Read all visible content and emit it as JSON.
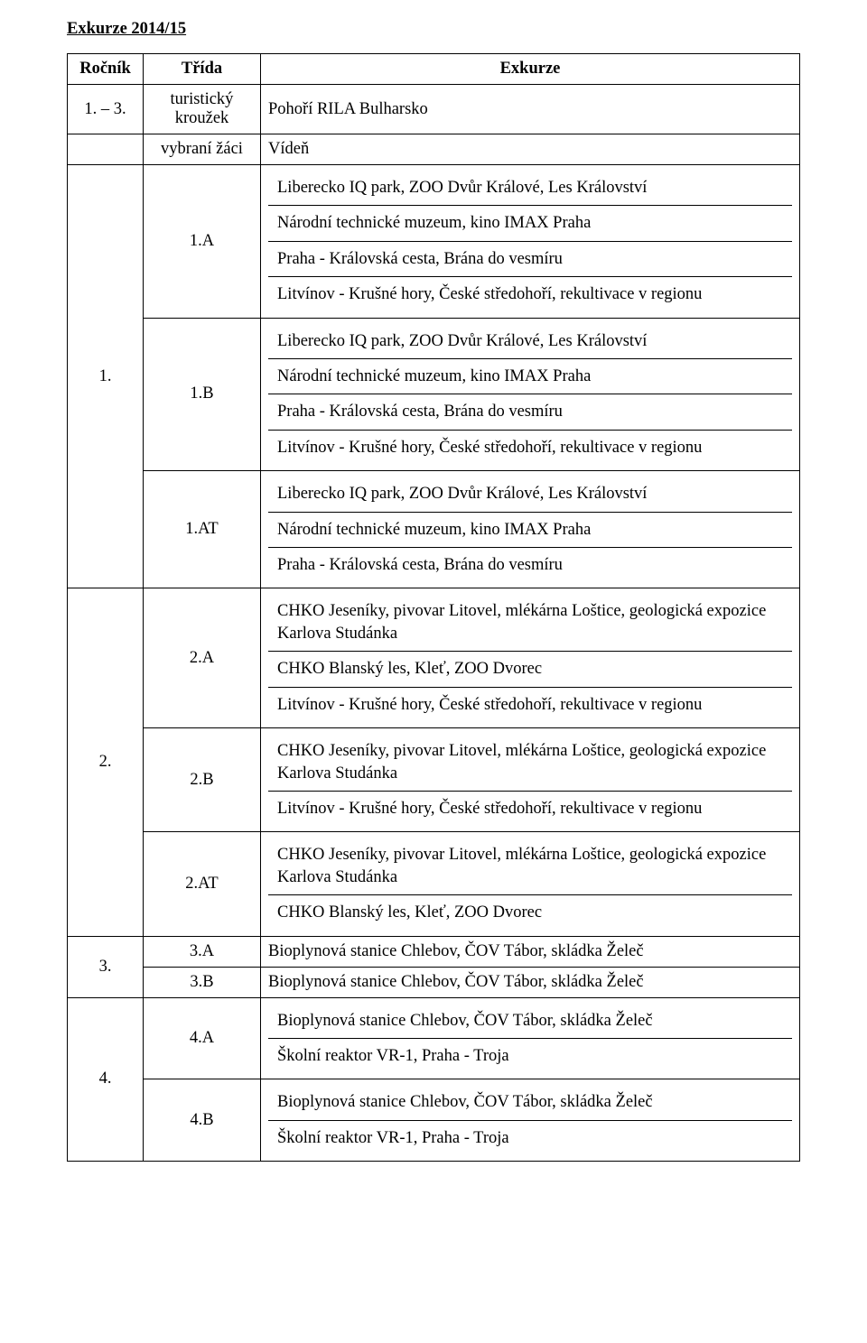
{
  "title": "Exkurze 2014/15",
  "headers": {
    "rocnik": "Ročník",
    "trida": "Třída",
    "exkurze": "Exkurze"
  },
  "r0": {
    "rocnik": "1. – 3.",
    "trida": "turistický kroužek",
    "ex": "Pohoří RILA Bulharsko"
  },
  "r1": {
    "trida": "vybraní žáci",
    "ex": "Vídeň"
  },
  "g1": {
    "rocnik": "1.",
    "a": {
      "trida": "1.A",
      "l1": "Liberecko IQ park, ZOO Dvůr Králové, Les Království",
      "l2": "Národní technické muzeum, kino IMAX Praha",
      "l3": "Praha - Královská cesta, Brána do vesmíru",
      "l4": "Litvínov - Krušné hory, České středohoří, rekultivace v regionu"
    },
    "b": {
      "trida": "1.B",
      "l1": "Liberecko IQ park, ZOO Dvůr Králové, Les Království",
      "l2": "Národní technické muzeum, kino IMAX Praha",
      "l3": "Praha - Královská cesta, Brána do vesmíru",
      "l4": "Litvínov - Krušné hory, České středohoří, rekultivace v regionu"
    },
    "at": {
      "trida": "1.AT",
      "l1": "Liberecko IQ park, ZOO Dvůr Králové, Les Království",
      "l2": "Národní technické muzeum, kino IMAX Praha",
      "l3": "Praha - Královská cesta, Brána do vesmíru"
    }
  },
  "g2": {
    "rocnik": "2.",
    "a": {
      "trida": "2.A",
      "l1": "CHKO Jeseníky,  pivovar Litovel,  mlékárna Loštice, geologická expozice Karlova Studánka",
      "l2": "CHKO Blanský les, Kleť, ZOO Dvorec",
      "l3": "Litvínov - Krušné hory, České středohoří, rekultivace v regionu"
    },
    "b": {
      "trida": "2.B",
      "l1": "CHKO Jeseníky,  pivovar Litovel,  mlékárna Loštice, geologická expozice Karlova Studánka",
      "l2": "Litvínov - Krušné hory, České středohoří, rekultivace v regionu"
    },
    "at": {
      "trida": "2.AT",
      "l1": "CHKO Jeseníky,  pivovar Litovel,  mlékárna Loštice, geologická expozice Karlova Studánka",
      "l2": "CHKO Blanský les, Kleť, ZOO Dvorec"
    }
  },
  "g3": {
    "rocnik": "3.",
    "a": {
      "trida": "3.A",
      "l1": "Bioplynová stanice Chlebov, ČOV Tábor, skládka Želeč"
    },
    "b": {
      "trida": "3.B",
      "l1": "Bioplynová stanice Chlebov, ČOV Tábor, skládka Želeč"
    }
  },
  "g4": {
    "rocnik": "4.",
    "a": {
      "trida": "4.A",
      "l1": "Bioplynová stanice Chlebov, ČOV Tábor, skládka Želeč",
      "l2": "Školní reaktor VR-1, Praha - Troja"
    },
    "b": {
      "trida": "4.B",
      "l1": "Bioplynová stanice Chlebov, ČOV Tábor, skládka Želeč",
      "l2": "Školní reaktor VR-1, Praha - Troja"
    }
  }
}
